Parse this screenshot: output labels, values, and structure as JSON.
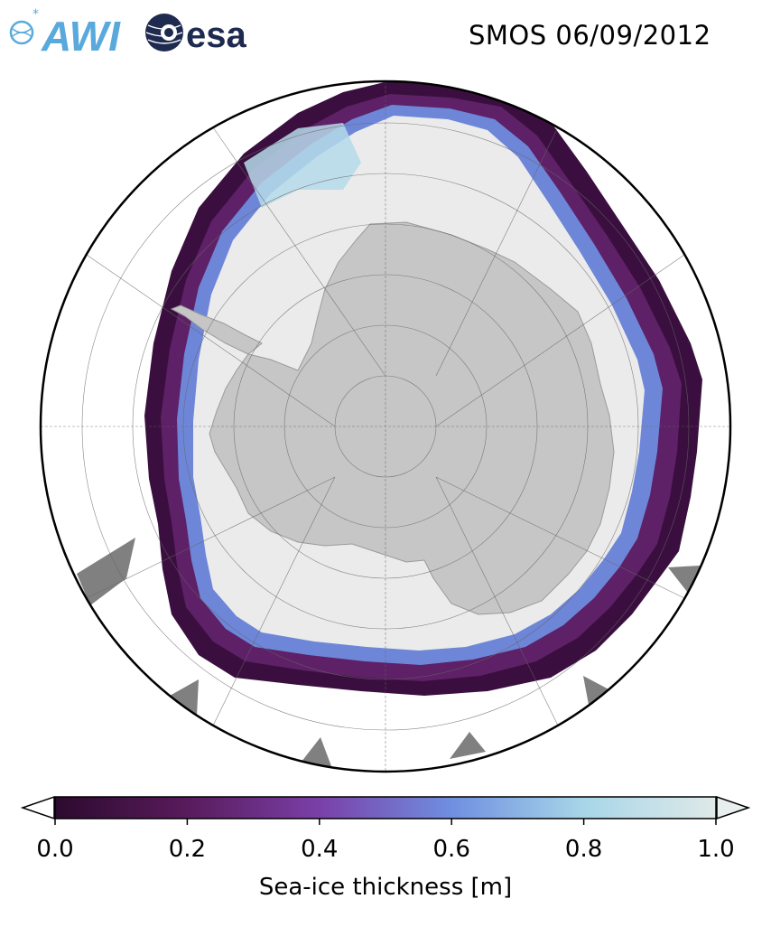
{
  "header": {
    "title": "SMOS 06/09/2012",
    "logos": [
      {
        "name": "awi-logo",
        "text": "AWI",
        "color": "#5aa9dd"
      },
      {
        "name": "esa-logo",
        "text": "esa",
        "color": "#1e2a4f"
      }
    ]
  },
  "map": {
    "projection": "south-polar-stereographic",
    "land_color": "#c6c6c6",
    "open_ocean_color": "#ffffff",
    "thick_ice_color": "#ebebeb",
    "no_data_color": "#808080",
    "graticule": true,
    "boundary": "circle"
  },
  "colorbar": {
    "label": "Sea-ice thickness [m]",
    "min": 0.0,
    "max": 1.0,
    "extend": "both",
    "ticks": [
      "0.0",
      "0.2",
      "0.4",
      "0.6",
      "0.8",
      "1.0"
    ],
    "colormap": [
      "#2c0a2e",
      "#581b5c",
      "#7a40a8",
      "#6f8fe0",
      "#a8d6e8",
      "#dfe9e8"
    ]
  }
}
